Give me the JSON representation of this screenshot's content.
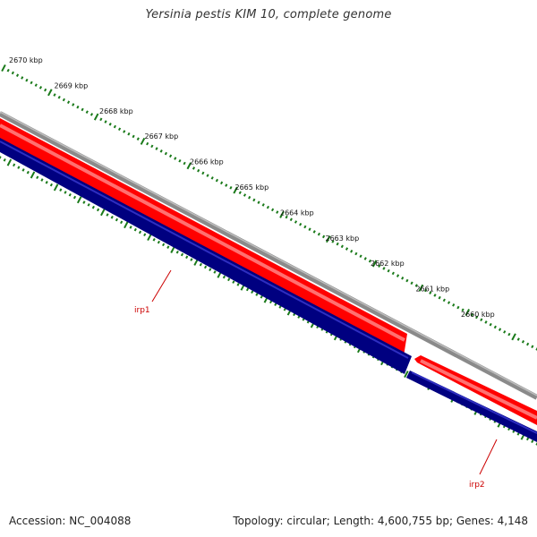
{
  "title": "Yersinia pestis KIM 10, complete genome",
  "accession_text": "Accession: NC_004088",
  "summary_text": "Topology: circular; Length: 4,600,755 bp; Genes: 4,148",
  "colors": {
    "backbone": "#808080",
    "forward_strand": "#ff0000",
    "forward_strand_highlight": "#ff7a7a",
    "reverse_strand": "#000080",
    "reverse_strand_highlight": "#2a2ab0",
    "tick": "#1a7a1a",
    "feature_label": "#cc0000"
  },
  "scale_labels": [
    "2670 kbp",
    "2669 kbp",
    "2668 kbp",
    "2667 kbp",
    "2666 kbp",
    "2665 kbp",
    "2664 kbp",
    "2663 kbp",
    "2662 kbp",
    "2661 kbp",
    "2660 kbp"
  ],
  "features": [
    {
      "label": "irp1"
    },
    {
      "label": "irp2"
    }
  ]
}
